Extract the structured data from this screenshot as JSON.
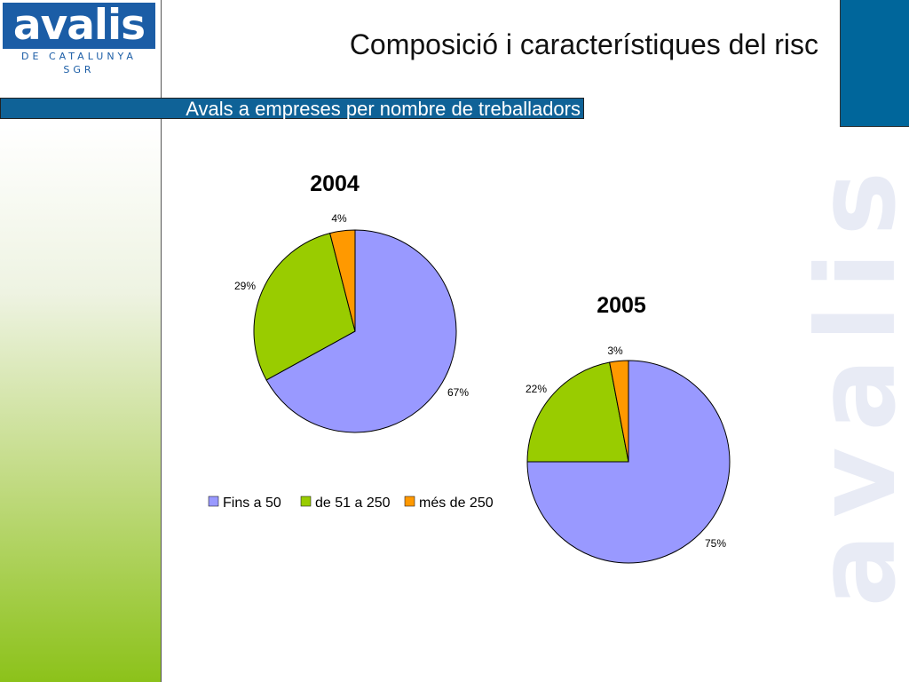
{
  "header": {
    "logo_text": "avalis",
    "logo_subtext": "DE CATALUNYA SGR",
    "title": "Composició i característiques del risc",
    "section_title": "Avals a empreses per nombre de treballadors",
    "watermark_text": "avalis"
  },
  "colors": {
    "brand_blue": "#00669b",
    "series": [
      "#9999ff",
      "#99cc00",
      "#ff9900"
    ]
  },
  "chart_data": [
    {
      "type": "pie",
      "title": "2004",
      "categories": [
        "Fins a  50",
        "de 51 a 250",
        "més de 250"
      ],
      "values": [
        67,
        29,
        4
      ],
      "labels": [
        "67%",
        "29%",
        "4%"
      ],
      "legend": "bottom"
    },
    {
      "type": "pie",
      "title": "2005",
      "categories": [
        "Fins a  50",
        "de 51 a 250",
        "més de 250"
      ],
      "values": [
        75,
        22,
        3
      ],
      "labels": [
        "75%",
        "22%",
        "3%"
      ]
    }
  ]
}
